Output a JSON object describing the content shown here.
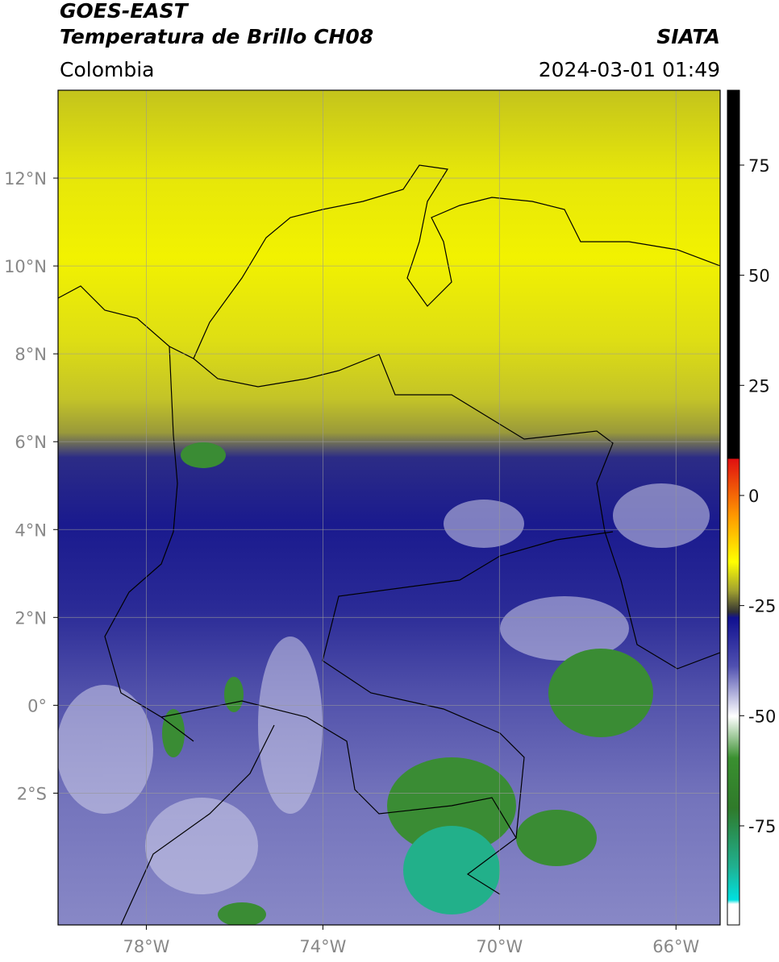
{
  "header": {
    "title": "GOES-EAST",
    "subtitle": "Temperatura de Brillo CH08",
    "source": "SIATA",
    "region": "Colombia",
    "timestamp": "2024-03-01 01:49"
  },
  "map": {
    "xlim": [
      -80,
      -65
    ],
    "ylim": [
      -5,
      14
    ],
    "xticks": [
      {
        "value": -78,
        "label": "78°W"
      },
      {
        "value": -74,
        "label": "74°W"
      },
      {
        "value": -70,
        "label": "70°W"
      },
      {
        "value": -66,
        "label": "66°W"
      }
    ],
    "yticks": [
      {
        "value": 12,
        "label": "12°N"
      },
      {
        "value": 10,
        "label": "10°N"
      },
      {
        "value": 8,
        "label": "8°N"
      },
      {
        "value": 6,
        "label": "6°N"
      },
      {
        "value": 4,
        "label": "4°N"
      },
      {
        "value": 2,
        "label": "2°N"
      },
      {
        "value": 0,
        "label": "0°"
      },
      {
        "value": -2,
        "label": "2°S"
      }
    ],
    "grid": true
  },
  "colorbar": {
    "lim": [
      -97.5,
      92
    ],
    "ticks": [
      75,
      50,
      25,
      0,
      -25,
      -50,
      -75
    ]
  }
}
